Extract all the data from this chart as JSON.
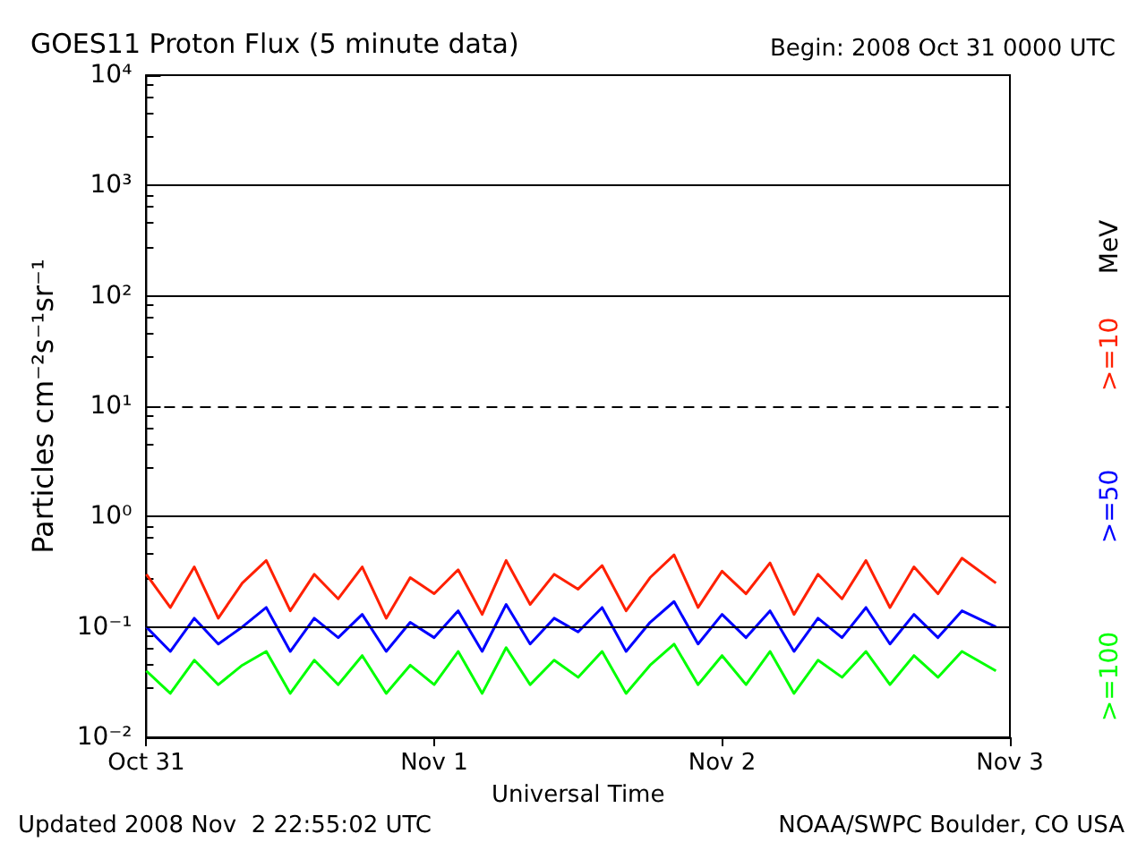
{
  "chart_data": {
    "type": "line",
    "title": "GOES11 Proton Flux (5 minute data)",
    "subtitle": "Begin: 2008 Oct 31 0000 UTC",
    "xlabel": "Universal Time",
    "ylabel": "Particles cm⁻²s⁻¹sr⁻¹",
    "annotations": [
      "MeV",
      "Updated 2008 Nov  2 22:55:02 UTC",
      "NOAA/SWPC Boulder, CO USA"
    ],
    "x": [
      "2008-10-31T00:00",
      "2008-10-31T02:00",
      "2008-10-31T04:00",
      "2008-10-31T06:00",
      "2008-10-31T08:00",
      "2008-10-31T10:00",
      "2008-10-31T12:00",
      "2008-10-31T14:00",
      "2008-10-31T16:00",
      "2008-10-31T18:00",
      "2008-10-31T20:00",
      "2008-10-31T22:00",
      "2008-11-01T00:00",
      "2008-11-01T02:00",
      "2008-11-01T04:00",
      "2008-11-01T06:00",
      "2008-11-01T08:00",
      "2008-11-01T10:00",
      "2008-11-01T12:00",
      "2008-11-01T14:00",
      "2008-11-01T16:00",
      "2008-11-01T18:00",
      "2008-11-01T20:00",
      "2008-11-01T22:00",
      "2008-11-02T00:00",
      "2008-11-02T02:00",
      "2008-11-02T04:00",
      "2008-11-02T06:00",
      "2008-11-02T08:00",
      "2008-11-02T10:00",
      "2008-11-02T12:00",
      "2008-11-02T14:00",
      "2008-11-02T16:00",
      "2008-11-02T18:00",
      "2008-11-02T20:00",
      "2008-11-02T22:50"
    ],
    "series": [
      {
        "name": ">=10",
        "color": "#ff2000",
        "values": [
          0.3,
          0.15,
          0.35,
          0.12,
          0.25,
          0.4,
          0.14,
          0.3,
          0.18,
          0.35,
          0.12,
          0.28,
          0.2,
          0.33,
          0.13,
          0.4,
          0.16,
          0.3,
          0.22,
          0.36,
          0.14,
          0.28,
          0.45,
          0.15,
          0.32,
          0.2,
          0.38,
          0.13,
          0.3,
          0.18,
          0.4,
          0.15,
          0.35,
          0.2,
          0.42,
          0.25
        ]
      },
      {
        "name": ">=50",
        "color": "#0000ff",
        "values": [
          0.1,
          0.06,
          0.12,
          0.07,
          0.1,
          0.15,
          0.06,
          0.12,
          0.08,
          0.13,
          0.06,
          0.11,
          0.08,
          0.14,
          0.06,
          0.16,
          0.07,
          0.12,
          0.09,
          0.15,
          0.06,
          0.11,
          0.17,
          0.07,
          0.13,
          0.08,
          0.14,
          0.06,
          0.12,
          0.08,
          0.15,
          0.07,
          0.13,
          0.08,
          0.14,
          0.1
        ]
      },
      {
        "name": ">=100",
        "color": "#00ff00",
        "values": [
          0.04,
          0.025,
          0.05,
          0.03,
          0.045,
          0.06,
          0.025,
          0.05,
          0.03,
          0.055,
          0.025,
          0.045,
          0.03,
          0.06,
          0.025,
          0.065,
          0.03,
          0.05,
          0.035,
          0.06,
          0.025,
          0.045,
          0.07,
          0.03,
          0.055,
          0.03,
          0.06,
          0.025,
          0.05,
          0.035,
          0.06,
          0.03,
          0.055,
          0.035,
          0.06,
          0.04
        ]
      }
    ],
    "log": true,
    "xlim": [
      "2008-10-31T00:00",
      "2008-11-03T00:00"
    ],
    "xticks": [
      {
        "value": "2008-10-31T00:00",
        "label": "Oct 31"
      },
      {
        "value": "2008-11-01T00:00",
        "label": "Nov 1"
      },
      {
        "value": "2008-11-02T00:00",
        "label": "Nov 2"
      },
      {
        "value": "2008-11-03T00:00",
        "label": "Nov 3"
      }
    ],
    "ylim": [
      0.01,
      10000
    ],
    "yticks": [
      {
        "value": 0.01,
        "label": "10⁻²"
      },
      {
        "value": 0.1,
        "label": "10⁻¹"
      },
      {
        "value": 1,
        "label": "10⁰"
      },
      {
        "value": 10,
        "label": "10¹"
      },
      {
        "value": 100,
        "label": "10²"
      },
      {
        "value": 1000,
        "label": "10³"
      },
      {
        "value": 10000,
        "label": "10⁴"
      }
    ],
    "ref_lines": [
      {
        "axis": "y",
        "value": 0.1,
        "color": "#000000",
        "line_style": "solid"
      },
      {
        "axis": "y",
        "value": 1,
        "color": "#000000",
        "line_style": "solid"
      },
      {
        "axis": "y",
        "value": 10,
        "color": "#000000",
        "line_style": "dashed"
      },
      {
        "axis": "y",
        "value": 100,
        "color": "#000000",
        "line_style": "solid"
      },
      {
        "axis": "y",
        "value": 1000,
        "color": "#000000",
        "line_style": "solid"
      }
    ]
  }
}
